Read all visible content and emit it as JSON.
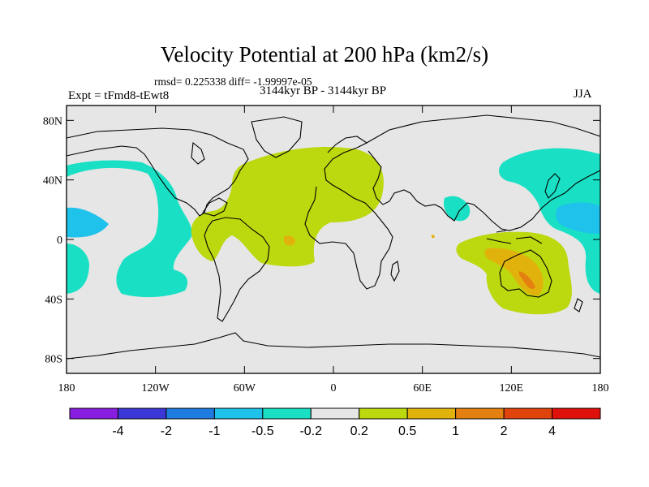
{
  "title": "Velocity Potential at 200 hPa (km2/s)",
  "stats": "rmsd= 0.225338 diff= -1.99997e-05",
  "experiment": "Expt = tFmd8-tEwt8",
  "period": "3144kyr BP - 3144kyr BP",
  "season": "JJA",
  "axes": {
    "y_ticks": [
      {
        "label": "80N",
        "lat": 80
      },
      {
        "label": "40N",
        "lat": 40
      },
      {
        "label": "0",
        "lat": 0
      },
      {
        "label": "40S",
        "lat": -40
      },
      {
        "label": "80S",
        "lat": -80
      }
    ],
    "x_ticks": [
      {
        "label": "180",
        "lon": -180
      },
      {
        "label": "120W",
        "lon": -120
      },
      {
        "label": "60W",
        "lon": -60
      },
      {
        "label": "0",
        "lon": 0
      },
      {
        "label": "60E",
        "lon": 60
      },
      {
        "label": "120E",
        "lon": 120
      },
      {
        "label": "180",
        "lon": 180
      }
    ]
  },
  "colorbar": {
    "colors": [
      "#8a1ee0",
      "#3c38d8",
      "#1e7ce0",
      "#1ec2ea",
      "#19e0c4",
      "#e6e6e6",
      "#bcd80e",
      "#e2b20c",
      "#e48010",
      "#e0440a",
      "#e0100a"
    ],
    "labels": [
      "-4",
      "-2",
      "-1",
      "-0.5",
      "-0.2",
      "0.2",
      "0.5",
      "1",
      "2",
      "4"
    ]
  },
  "colors": {
    "neutral": "#e6e6e6",
    "neg_light": "#19e0c4",
    "neg_medium": "#1ec2ea",
    "pos_light": "#bcd80e",
    "pos_medium": "#e2b20c",
    "pos_strong": "#e48010"
  }
}
